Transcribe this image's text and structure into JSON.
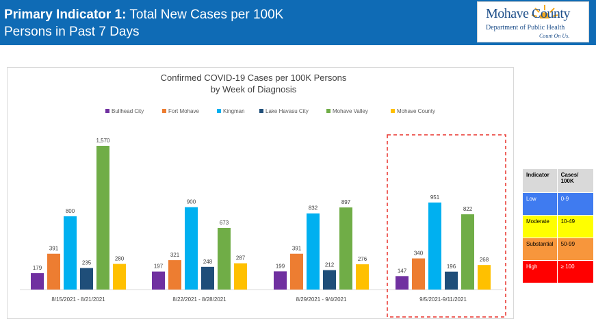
{
  "header": {
    "title_bold": "Primary Indicator 1:",
    "title_rest": " Total New Cases per 100K",
    "title_line2": "Persons in Past 7 Days"
  },
  "logo": {
    "name": "Mohave County",
    "dept": "Department of Public Health",
    "tagline": "Count On Us."
  },
  "chart_data": {
    "type": "bar",
    "title": "Confirmed COVID-19 Cases per 100K Persons",
    "subtitle": "by Week of Diagnosis",
    "categories": [
      "8/15/2021 - 8/21/2021",
      "8/22/2021 - 8/28/2021",
      "8/29/2021 - 9/4/2021",
      "9/5/2021-9/11/2021"
    ],
    "series": [
      {
        "name": "Bullhead City",
        "color": "#7030a0",
        "values": [
          179,
          197,
          199,
          147
        ],
        "labels": [
          "179",
          "197",
          "199",
          "147"
        ]
      },
      {
        "name": "Fort Mohave",
        "color": "#ed7d31",
        "values": [
          391,
          321,
          391,
          340
        ],
        "labels": [
          "391",
          "321",
          "391",
          "340"
        ]
      },
      {
        "name": "Kingman",
        "color": "#00b0f0",
        "values": [
          800,
          900,
          832,
          951
        ],
        "labels": [
          "800",
          "900",
          "832",
          "951"
        ]
      },
      {
        "name": "Lake Havasu City",
        "color": "#1f4e79",
        "values": [
          235,
          248,
          212,
          196
        ],
        "labels": [
          "235",
          "248",
          "212",
          "196"
        ]
      },
      {
        "name": "Mohave Valley",
        "color": "#70ad47",
        "values": [
          1570,
          673,
          897,
          822
        ],
        "labels": [
          "1,570",
          "673",
          "897",
          "822"
        ]
      },
      {
        "name": "Mohave County",
        "color": "#ffc000",
        "values": [
          280,
          287,
          276,
          268
        ],
        "labels": [
          "280",
          "287",
          "276",
          "268"
        ]
      }
    ],
    "ylim": [
      0,
      1600
    ],
    "highlighted_category": "9/5/2021-9/11/2021",
    "legend_position": "top"
  },
  "indicator_table": {
    "header": [
      "Indicator",
      "Cases/ 100K"
    ],
    "rows": [
      {
        "level": "Low",
        "range": "0-9",
        "color": "#3f7bf0",
        "text_color": "#ffffff"
      },
      {
        "level": "Moderate",
        "range": "10-49",
        "color": "#ffff00",
        "text_color": "#000000"
      },
      {
        "level": "Substantial",
        "range": "50-99",
        "color": "#f7963c",
        "text_color": "#000000"
      },
      {
        "level": "High",
        "range": "≥ 100",
        "color": "#ff0000",
        "text_color": "#ffffff"
      }
    ]
  }
}
